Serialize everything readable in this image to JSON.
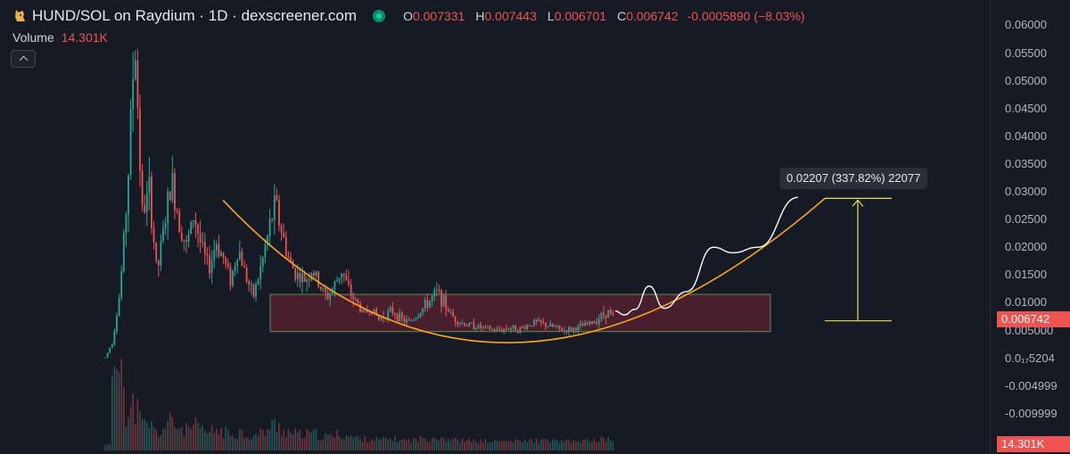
{
  "header": {
    "title": "HUND/SOL on Raydium · 1D · dexscreener.com",
    "ohlc": [
      {
        "key": "O",
        "value": "0.007331"
      },
      {
        "key": "H",
        "value": "0.007443"
      },
      {
        "key": "L",
        "value": "0.006701"
      },
      {
        "key": "C",
        "value": "0.006742"
      }
    ],
    "change": "-0.0005890 (−8.03%)"
  },
  "volume": {
    "label": "Volume",
    "value": "14.301K"
  },
  "price_axis": {
    "ticks": [
      "0.06000",
      "0.05500",
      "0.05000",
      "0.04500",
      "0.04000",
      "0.03500",
      "0.03000",
      "0.02500",
      "0.02000",
      "0.01500",
      "0.01000",
      "0.005000",
      "0.0₁₇5204",
      "-0.004999",
      "-0.009999"
    ],
    "last_price_tag": "0.006742",
    "volume_tag": "14.301K"
  },
  "measure": {
    "label": "0.02207 (337.82%) 22077",
    "from": 0.006742,
    "to": 0.02881
  },
  "colors": {
    "up": "#26a69a",
    "down": "#ef5350",
    "curve": "#f5a623",
    "box_fill": "#5c2230",
    "box_stroke": "#5e8f4b",
    "measure": "#e8e04a",
    "projection": "#ffffff",
    "background": "#161a25"
  },
  "chart_data": {
    "type": "candlestick",
    "title": "HUND/SOL on Raydium · 1D · dexscreener.com",
    "ylim": [
      -0.0125,
      0.0625
    ],
    "y_ticks": [
      0.06,
      0.055,
      0.05,
      0.045,
      0.04,
      0.035,
      0.03,
      0.025,
      0.02,
      0.015,
      0.01,
      0.005,
      5.204e-07,
      -0.004999,
      -0.009999
    ],
    "last": {
      "open": 0.007331,
      "high": 0.007443,
      "low": 0.006701,
      "close": 0.006742,
      "change": -0.000589,
      "change_pct": -8.03
    },
    "volume_last": "14.301K",
    "price_path": [
      0.0001,
      0.003,
      0.012,
      0.03,
      0.058,
      0.026,
      0.03,
      0.015,
      0.024,
      0.032,
      0.025,
      0.02,
      0.026,
      0.02,
      0.016,
      0.021,
      0.018,
      0.014,
      0.02,
      0.015,
      0.011,
      0.016,
      0.022,
      0.028,
      0.022,
      0.017,
      0.015,
      0.014,
      0.016,
      0.013,
      0.011,
      0.013,
      0.016,
      0.012,
      0.01,
      0.008,
      0.009,
      0.007,
      0.008,
      0.0085,
      0.007,
      0.0065,
      0.0075,
      0.009,
      0.0105,
      0.012,
      0.0095,
      0.0075,
      0.0065,
      0.006,
      0.0058,
      0.0055,
      0.0052,
      0.005,
      0.0053,
      0.0055,
      0.0052,
      0.0058,
      0.0065,
      0.0062,
      0.0058,
      0.0055,
      0.005,
      0.0052,
      0.0055,
      0.006,
      0.0065,
      0.0075,
      0.0085,
      0.0067
    ],
    "support_zone": [
      0.0048,
      0.0115
    ],
    "rounded_bottom": {
      "start": 0.0285,
      "bottom": 0.0028,
      "end": 0.0288
    },
    "projection": [
      0.0085,
      0.0078,
      0.0088,
      0.013,
      0.009,
      0.012,
      0.02,
      0.019,
      0.02,
      0.029
    ]
  }
}
